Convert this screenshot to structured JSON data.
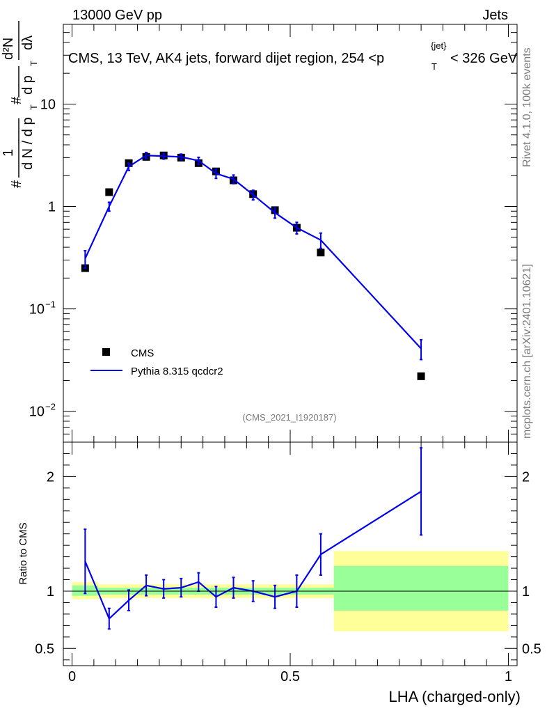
{
  "header": {
    "left": "13000 GeV pp",
    "right": "Jets"
  },
  "title": {
    "main": "CMS, 13 TeV, AK4 jets, forward dijet region, 254 <p",
    "sup": "{jet}",
    "sub": "T",
    "tail": "< 326 GeV"
  },
  "side": {
    "rivet": "Rivet 4.1.0,  100k events",
    "mcplots": "mcplots.cern.ch [arXiv:2401.10621]"
  },
  "analysis_tag": "(CMS_2021_I1920187)",
  "ylabel_main": {
    "hash": "#",
    "one": "1",
    "dN": "d N / d p",
    "T": "T",
    "hash2": "#",
    "dp": "d p",
    "T2": "T",
    "d2N": "d²N",
    "dlambda": "dλ"
  },
  "ylabel_ratio": "Ratio to CMS",
  "xlabel": "LHA (charged-only)",
  "chart_data": {
    "type": "line",
    "xlim": [
      -0.02,
      1.02
    ],
    "main_yscale": "log",
    "main_ylim": [
      0.005,
      60
    ],
    "ratio_ylim": [
      0.35,
      2.3
    ],
    "x_ticks": [
      {
        "v": 0,
        "label": "0"
      },
      {
        "v": 0.5,
        "label": "0.5"
      },
      {
        "v": 1,
        "label": "1"
      }
    ],
    "main_y_ticks": [
      {
        "v": 0.01,
        "base": "10",
        "exp": "−2"
      },
      {
        "v": 0.1,
        "base": "10",
        "exp": "−1"
      },
      {
        "v": 1,
        "base": "1",
        "exp": ""
      },
      {
        "v": 10,
        "base": "10",
        "exp": ""
      }
    ],
    "ratio_y_ticks": [
      {
        "v": 0.5,
        "label": "0.5"
      },
      {
        "v": 1,
        "label": "1"
      },
      {
        "v": 2,
        "label": "2"
      }
    ],
    "legend": [
      {
        "name": "CMS",
        "marker": "square"
      },
      {
        "name": "Pythia 8.315 qcdcr2",
        "marker": "line",
        "color": "#0000ee"
      }
    ],
    "data_series": {
      "name": "CMS",
      "x": [
        0.03,
        0.085,
        0.13,
        0.17,
        0.21,
        0.25,
        0.29,
        0.33,
        0.37,
        0.415,
        0.465,
        0.515,
        0.57,
        0.8
      ],
      "y": [
        0.25,
        1.38,
        2.65,
        3.05,
        3.15,
        3.0,
        2.65,
        2.2,
        1.8,
        1.32,
        0.92,
        0.62,
        0.355,
        0.022
      ]
    },
    "mc_series": {
      "name": "Pythia 8.315 qcdcr2",
      "color": "#0000ee",
      "x": [
        0.03,
        0.085,
        0.13,
        0.17,
        0.21,
        0.25,
        0.29,
        0.33,
        0.37,
        0.415,
        0.465,
        0.515,
        0.57,
        0.8
      ],
      "y": [
        0.31,
        1.0,
        2.45,
        3.15,
        3.1,
        3.05,
        2.8,
        2.1,
        1.85,
        1.3,
        0.87,
        0.62,
        0.47,
        0.041
      ],
      "err": [
        0.06,
        0.1,
        0.2,
        0.22,
        0.2,
        0.2,
        0.22,
        0.22,
        0.18,
        0.14,
        0.1,
        0.08,
        0.08,
        0.009
      ]
    },
    "ratio": {
      "x": [
        0.03,
        0.085,
        0.13,
        0.17,
        0.21,
        0.25,
        0.29,
        0.33,
        0.37,
        0.415,
        0.465,
        0.515,
        0.57,
        0.8
      ],
      "y": [
        1.26,
        0.76,
        0.92,
        1.05,
        1.02,
        1.03,
        1.08,
        0.95,
        1.03,
        1.0,
        0.95,
        1.0,
        1.32,
        1.87
      ],
      "err": [
        0.28,
        0.09,
        0.09,
        0.09,
        0.08,
        0.08,
        0.08,
        0.09,
        0.09,
        0.09,
        0.1,
        0.14,
        0.18,
        0.38
      ]
    },
    "bands": [
      {
        "x0": 0.0,
        "x1": 0.06,
        "stat_lo": 0.96,
        "stat_hi": 1.05,
        "sys_lo": 0.93,
        "sys_hi": 1.08
      },
      {
        "x0": 0.06,
        "x1": 0.6,
        "stat_lo": 0.97,
        "stat_hi": 1.03,
        "sys_lo": 0.94,
        "sys_hi": 1.06
      },
      {
        "x0": 0.6,
        "x1": 1.0,
        "stat_lo": 0.83,
        "stat_hi": 1.22,
        "sys_lo": 0.65,
        "sys_hi": 1.35
      }
    ]
  }
}
